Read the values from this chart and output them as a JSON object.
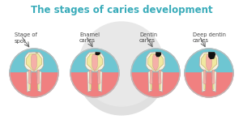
{
  "title": "The stages of caries development",
  "title_color": "#3aacba",
  "title_fontsize": 8.5,
  "background_color": "#ffffff",
  "watermark_color": "#e0e0e0",
  "stages": [
    {
      "label": "Stage of\nspot"
    },
    {
      "label": "Enamel\ncaries"
    },
    {
      "label": "Dentin\ncaries"
    },
    {
      "label": "Deep dentin\ncaries"
    }
  ],
  "sky_color": "#6ec6d2",
  "gum_color": "#f08080",
  "enamel_outer_color": "#f7f3e0",
  "enamel_inner_color": "#ede8c8",
  "dentin_color": "#f0e8a0",
  "pulp_color": "#f5b0a8",
  "caries_color": "#111111",
  "border_color": "#bbbbbb"
}
